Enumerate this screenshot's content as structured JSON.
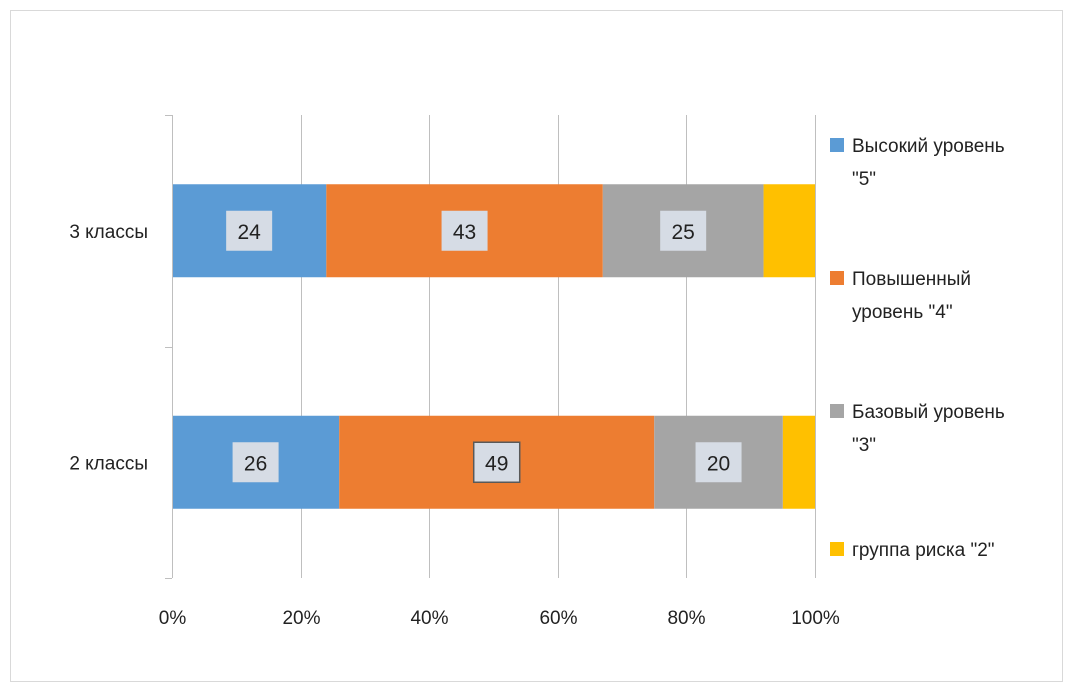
{
  "chart_data": {
    "type": "bar",
    "orientation": "horizontal",
    "stacked": "percent",
    "title": "",
    "xlabel": "",
    "ylabel": "",
    "categories": [
      "3 классы",
      "2 классы"
    ],
    "x_ticks": [
      "0%",
      "20%",
      "40%",
      "60%",
      "80%",
      "100%"
    ],
    "xlim": [
      0,
      100
    ],
    "grid": true,
    "legend_position": "right",
    "series": [
      {
        "name": "Высокий уровень \"5\"",
        "legend_lines": [
          "Высокий уровень",
          "\"5\""
        ],
        "color": "#5b9bd5",
        "values": [
          24,
          26
        ],
        "labels": [
          "24",
          "26"
        ]
      },
      {
        "name": "Повышенный уровень \"4\"",
        "legend_lines": [
          "Повышенный",
          "уровень \"4\""
        ],
        "color": "#ed7d31",
        "values": [
          43,
          49
        ],
        "labels": [
          "43",
          "49"
        ]
      },
      {
        "name": "Базовый уровень \"3\"",
        "legend_lines": [
          "Базовый уровень",
          "\"3\""
        ],
        "color": "#a5a5a5",
        "values": [
          25,
          20
        ],
        "labels": [
          "25",
          "20"
        ]
      },
      {
        "name": "группа риска \"2\"",
        "legend_lines": [
          "группа риска \"2\""
        ],
        "color": "#ffc000",
        "values": [
          8,
          5
        ],
        "labels": [
          "",
          ""
        ]
      }
    ]
  }
}
